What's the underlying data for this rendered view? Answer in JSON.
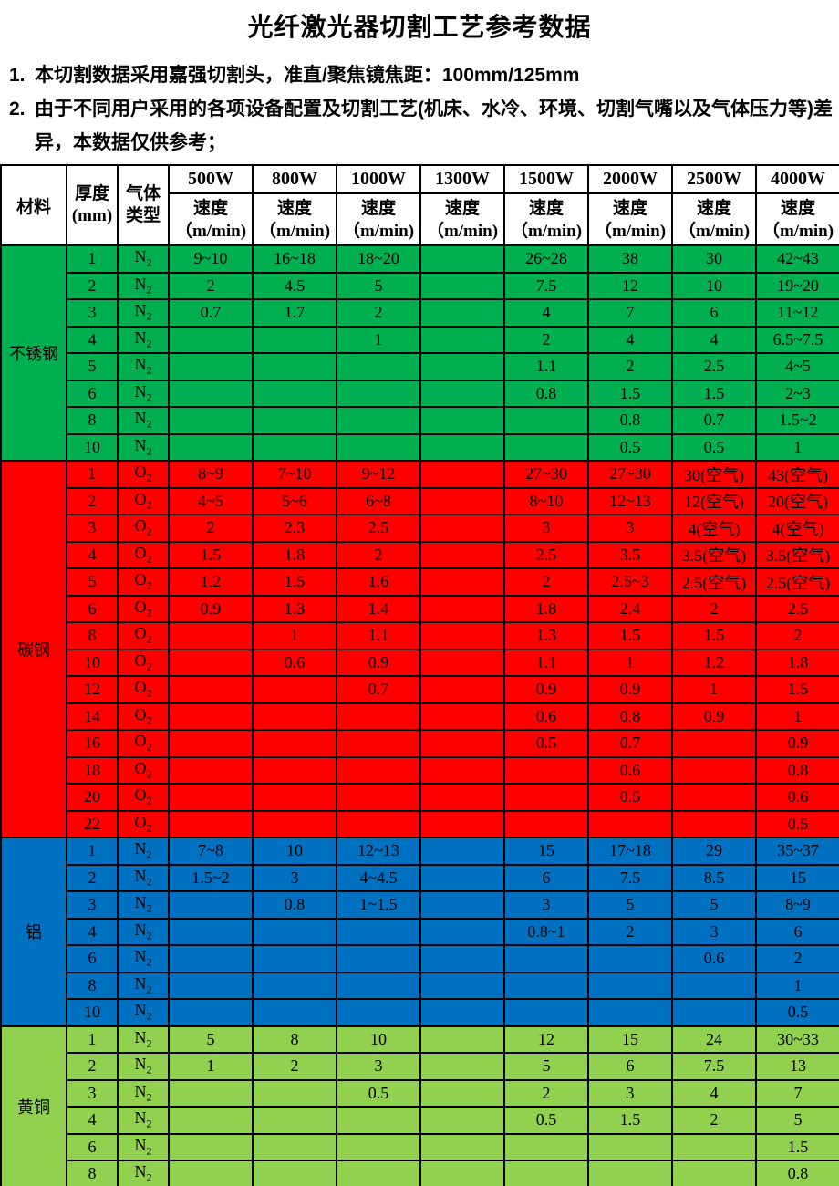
{
  "title": "光纤激光器切割工艺参考数据",
  "notes": [
    {
      "num": "1.",
      "text": "本切割数据采用嘉强切割头，准直/聚焦镜焦距：100mm/125mm"
    },
    {
      "num": "2.",
      "text": "由于不同用户采用的各项设备配置及切割工艺(机床、水冷、环境、切割气嘴以及气体压力等)差异，本数据仅供参考；"
    }
  ],
  "table": {
    "header": {
      "material": "材料",
      "thickness": "厚度\n(mm)",
      "gas": "气体\n类型",
      "powers": [
        "500W",
        "800W",
        "1000W",
        "1300W",
        "1500W",
        "2000W",
        "2500W",
        "4000W"
      ],
      "speed_label": "速度",
      "speed_unit": "（m/min)"
    },
    "sections": [
      {
        "material": "不锈钢",
        "color": "#00B050",
        "rows": [
          {
            "thickness": "1",
            "gas": "N2",
            "speeds": [
              "9~10",
              "16~18",
              "18~20",
              "",
              "26~28",
              "38",
              "30",
              "42~43"
            ]
          },
          {
            "thickness": "2",
            "gas": "N2",
            "speeds": [
              "2",
              "4.5",
              "5",
              "",
              "7.5",
              "12",
              "10",
              "19~20"
            ]
          },
          {
            "thickness": "3",
            "gas": "N2",
            "speeds": [
              "0.7",
              "1.7",
              "2",
              "",
              "4",
              "7",
              "6",
              "11~12"
            ]
          },
          {
            "thickness": "4",
            "gas": "N2",
            "speeds": [
              "",
              "",
              "1",
              "",
              "2",
              "4",
              "4",
              "6.5~7.5"
            ]
          },
          {
            "thickness": "5",
            "gas": "N2",
            "speeds": [
              "",
              "",
              "",
              "",
              "1.1",
              "2",
              "2.5",
              "4~5"
            ]
          },
          {
            "thickness": "6",
            "gas": "N2",
            "speeds": [
              "",
              "",
              "",
              "",
              "0.8",
              "1.5",
              "1.5",
              "2~3"
            ]
          },
          {
            "thickness": "8",
            "gas": "N2",
            "speeds": [
              "",
              "",
              "",
              "",
              "",
              "0.8",
              "0.7",
              "1.5~2"
            ]
          },
          {
            "thickness": "10",
            "gas": "N2",
            "speeds": [
              "",
              "",
              "",
              "",
              "",
              "0.5",
              "0.5",
              "1"
            ]
          }
        ]
      },
      {
        "material": "碳钢",
        "color": "#FF0000",
        "rows": [
          {
            "thickness": "1",
            "gas": "O2",
            "speeds": [
              "8~9",
              "7~10",
              "9~12",
              "",
              "27~30",
              "27~30",
              "30(空气)",
              "43(空气)"
            ]
          },
          {
            "thickness": "2",
            "gas": "O2",
            "speeds": [
              "4~5",
              "5~6",
              "6~8",
              "",
              "8~10",
              "12~13",
              "12(空气)",
              "20(空气)"
            ]
          },
          {
            "thickness": "3",
            "gas": "O2",
            "speeds": [
              "2",
              "2.3",
              "2.5",
              "",
              "3",
              "3",
              "4(空气)",
              "4(空气)"
            ]
          },
          {
            "thickness": "4",
            "gas": "O2",
            "speeds": [
              "1.5",
              "1.8",
              "2",
              "",
              "2.5",
              "3.5",
              "3.5(空气)",
              "3.5(空气)"
            ]
          },
          {
            "thickness": "5",
            "gas": "O2",
            "speeds": [
              "1.2",
              "1.5",
              "1.6",
              "",
              "2",
              "2.5~3",
              "2.5(空气)",
              "2.5(空气)"
            ]
          },
          {
            "thickness": "6",
            "gas": "O2",
            "speeds": [
              "0.9",
              "1.3",
              "1.4",
              "",
              "1.8",
              "2.4",
              "2",
              "2.5"
            ]
          },
          {
            "thickness": "8",
            "gas": "O2",
            "speeds": [
              "",
              "1",
              "1.1",
              "",
              "1.3",
              "1.5",
              "1.5",
              "2"
            ]
          },
          {
            "thickness": "10",
            "gas": "O2",
            "speeds": [
              "",
              "0.6",
              "0.9",
              "",
              "1.1",
              "1",
              "1.2",
              "1.8"
            ]
          },
          {
            "thickness": "12",
            "gas": "O2",
            "speeds": [
              "",
              "",
              "0.7",
              "",
              "0.9",
              "0.9",
              "1",
              "1.5"
            ]
          },
          {
            "thickness": "14",
            "gas": "O2",
            "speeds": [
              "",
              "",
              "",
              "",
              "0.6",
              "0.8",
              "0.9",
              "1"
            ]
          },
          {
            "thickness": "16",
            "gas": "O2",
            "speeds": [
              "",
              "",
              "",
              "",
              "0.5",
              "0.7",
              "",
              "0.9"
            ]
          },
          {
            "thickness": "18",
            "gas": "O2",
            "speeds": [
              "",
              "",
              "",
              "",
              "",
              "0.6",
              "",
              "0.8"
            ]
          },
          {
            "thickness": "20",
            "gas": "O2",
            "speeds": [
              "",
              "",
              "",
              "",
              "",
              "0.5",
              "",
              "0.6"
            ]
          },
          {
            "thickness": "22",
            "gas": "O2",
            "speeds": [
              "",
              "",
              "",
              "",
              "",
              "",
              "",
              "0.5"
            ]
          }
        ]
      },
      {
        "material": "铝",
        "color": "#0070C0",
        "rows": [
          {
            "thickness": "1",
            "gas": "N2",
            "speeds": [
              "7~8",
              "10",
              "12~13",
              "",
              "15",
              "17~18",
              "29",
              "35~37"
            ]
          },
          {
            "thickness": "2",
            "gas": "N2",
            "speeds": [
              "1.5~2",
              "3",
              "4~4.5",
              "",
              "6",
              "7.5",
              "8.5",
              "15"
            ]
          },
          {
            "thickness": "3",
            "gas": "N2",
            "speeds": [
              "",
              "0.8",
              "1~1.5",
              "",
              "3",
              "5",
              "5",
              "8~9"
            ]
          },
          {
            "thickness": "4",
            "gas": "N2",
            "speeds": [
              "",
              "",
              "",
              "",
              "0.8~1",
              "2",
              "3",
              "6"
            ]
          },
          {
            "thickness": "6",
            "gas": "N2",
            "speeds": [
              "",
              "",
              "",
              "",
              "",
              "",
              "0.6",
              "2"
            ]
          },
          {
            "thickness": "8",
            "gas": "N2",
            "speeds": [
              "",
              "",
              "",
              "",
              "",
              "",
              "",
              "1"
            ]
          },
          {
            "thickness": "10",
            "gas": "N2",
            "speeds": [
              "",
              "",
              "",
              "",
              "",
              "",
              "",
              "0.5"
            ]
          }
        ]
      },
      {
        "material": "黄铜",
        "color": "#92D050",
        "rows": [
          {
            "thickness": "1",
            "gas": "N2",
            "speeds": [
              "5",
              "8",
              "10",
              "",
              "12",
              "15",
              "24",
              "30~33"
            ]
          },
          {
            "thickness": "2",
            "gas": "N2",
            "speeds": [
              "1",
              "2",
              "3",
              "",
              "5",
              "6",
              "7.5",
              "13"
            ]
          },
          {
            "thickness": "3",
            "gas": "N2",
            "speeds": [
              "",
              "",
              "0.5",
              "",
              "2",
              "3",
              "4",
              "7"
            ]
          },
          {
            "thickness": "4",
            "gas": "N2",
            "speeds": [
              "",
              "",
              "",
              "",
              "0.5",
              "1.5",
              "2",
              "5"
            ]
          },
          {
            "thickness": "6",
            "gas": "N2",
            "speeds": [
              "",
              "",
              "",
              "",
              "",
              "",
              "",
              "1.5"
            ]
          },
          {
            "thickness": "8",
            "gas": "N2",
            "speeds": [
              "",
              "",
              "",
              "",
              "",
              "",
              "",
              "0.8"
            ]
          }
        ]
      }
    ]
  }
}
